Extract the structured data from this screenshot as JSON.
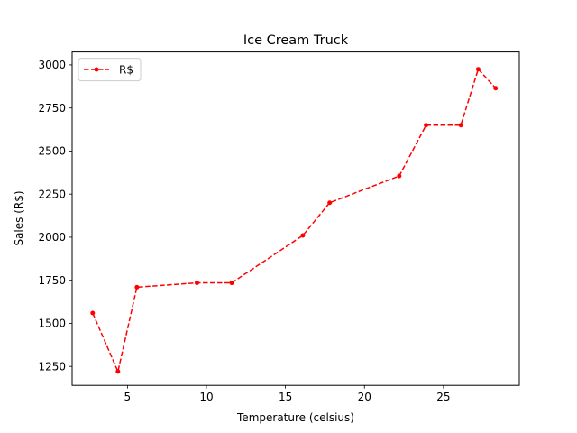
{
  "chart_data": {
    "type": "line",
    "title": "Ice Cream Truck",
    "xlabel": "Temperature (celsius)",
    "ylabel": "Sales (R$)",
    "xlim": [
      1.5,
      29.8
    ],
    "ylim": [
      1140,
      3075
    ],
    "xticks": [
      5,
      10,
      15,
      20,
      25
    ],
    "yticks": [
      1250,
      1500,
      1750,
      2000,
      2250,
      2500,
      2750,
      3000
    ],
    "grid": false,
    "legend_position": "top-left",
    "series": [
      {
        "name": "R$",
        "color": "#ff0000",
        "line_style": "dashed",
        "marker": "circle",
        "x": [
          2.8,
          4.4,
          5.6,
          9.4,
          11.6,
          16.1,
          17.8,
          22.2,
          23.9,
          26.1,
          27.2,
          28.3
        ],
        "y": [
          1560,
          1220,
          1710,
          1735,
          1735,
          2010,
          2200,
          2355,
          2650,
          2650,
          2975,
          2865
        ]
      }
    ]
  }
}
